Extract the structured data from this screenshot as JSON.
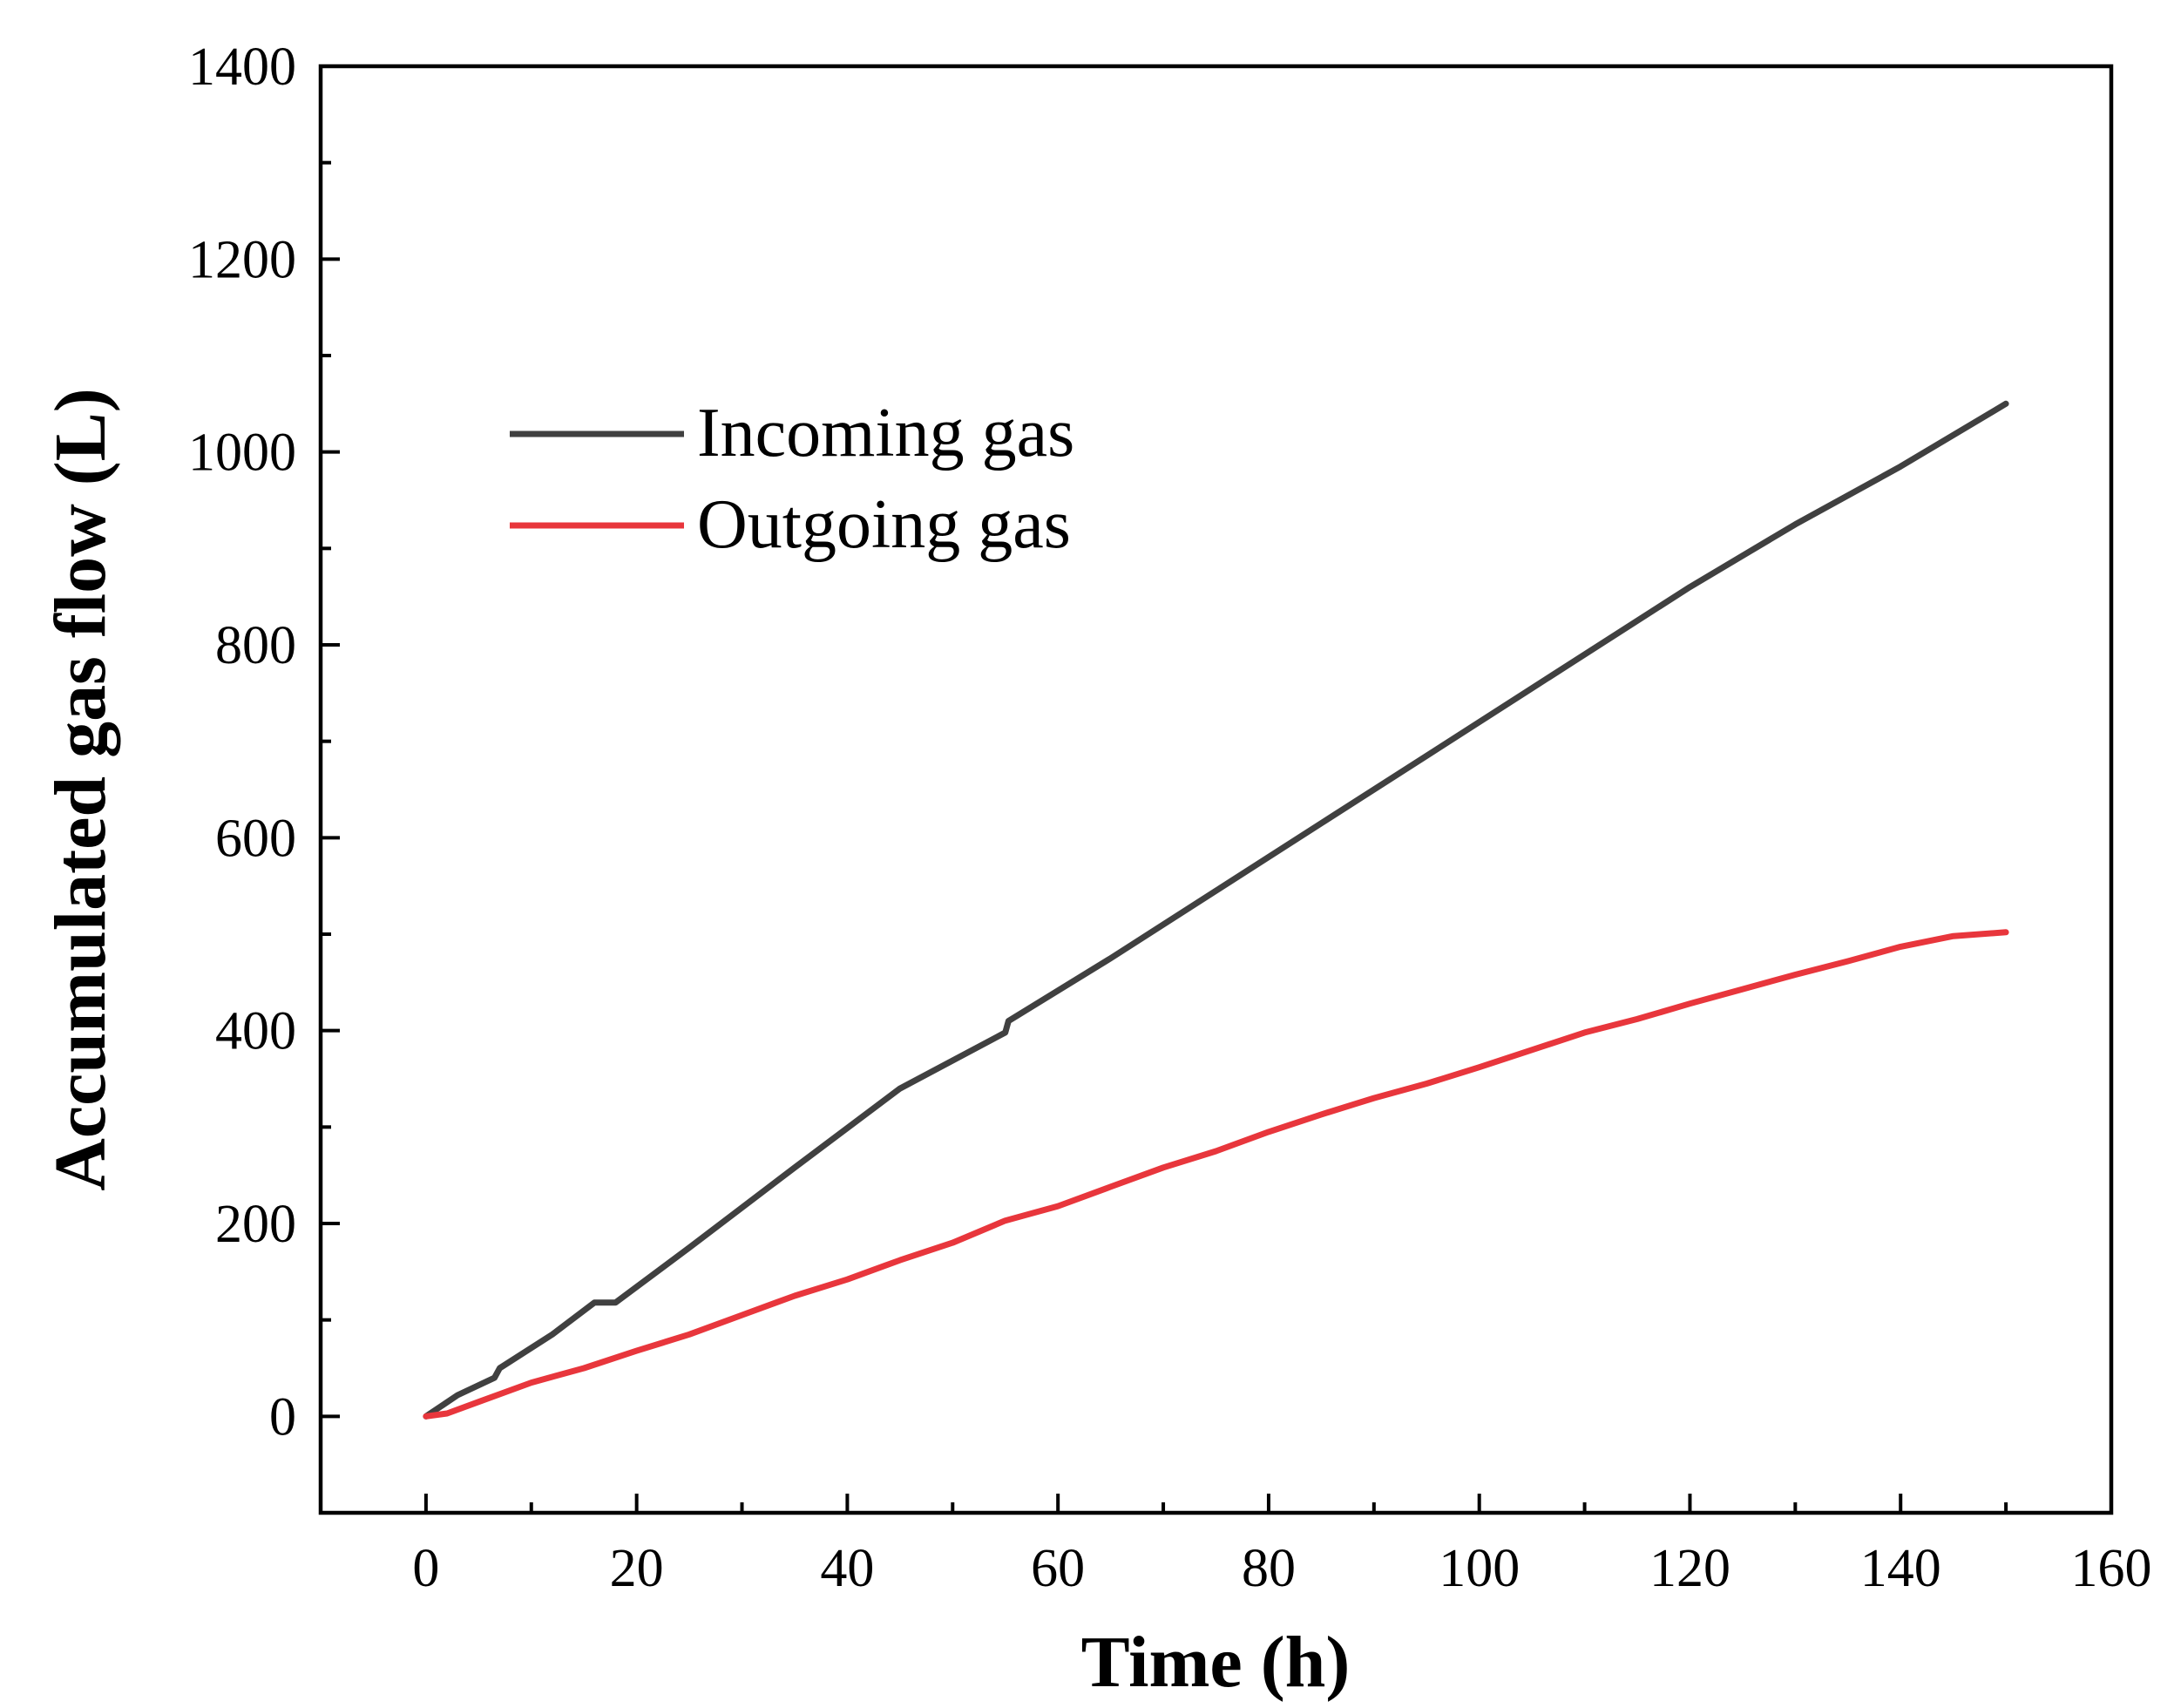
{
  "chart_data": {
    "type": "line",
    "title": "",
    "xlabel": "Time (h)",
    "ylabel": "Accumulated gas flow (L)",
    "xlim": [
      -10,
      160
    ],
    "ylim": [
      -100,
      1400
    ],
    "xticks": [
      0,
      20,
      40,
      60,
      80,
      100,
      120,
      140,
      160
    ],
    "yticks": [
      0,
      200,
      400,
      600,
      800,
      1000,
      1200,
      1400
    ],
    "xtick_labels": [
      "0",
      "20",
      "40",
      "60",
      "80",
      "100",
      "120",
      "140",
      "160"
    ],
    "ytick_labels": [
      "0",
      "200",
      "400",
      "600",
      "800",
      "1000",
      "1200",
      "1400"
    ],
    "grid": false,
    "legend_position": "upper-left",
    "series": [
      {
        "name": "Incoming gas",
        "color": "#404040",
        "x": [
          0,
          3,
          6.5,
          7,
          12,
          16,
          18,
          25,
          35,
          45,
          55,
          55.3,
          65,
          75,
          85,
          95,
          105,
          115,
          120,
          130,
          140,
          150
        ],
        "y": [
          0,
          22,
          40,
          50,
          85,
          118,
          118,
          175,
          258,
          340,
          398,
          410,
          475,
          545,
          615,
          685,
          755,
          825,
          860,
          925,
          985,
          1050
        ]
      },
      {
        "name": "Outgoing gas",
        "color": "#e8363c",
        "x": [
          0,
          2,
          5,
          10,
          15,
          20,
          25,
          30,
          35,
          40,
          45,
          50,
          55,
          60,
          65,
          70,
          75,
          80,
          85,
          90,
          95,
          100,
          105,
          110,
          115,
          120,
          125,
          130,
          135,
          140,
          145,
          150
        ],
        "y": [
          0,
          3,
          15,
          35,
          50,
          68,
          85,
          105,
          125,
          142,
          162,
          180,
          203,
          218,
          238,
          258,
          275,
          295,
          313,
          330,
          345,
          362,
          380,
          398,
          412,
          428,
          443,
          458,
          472,
          487,
          498,
          502
        ]
      }
    ]
  }
}
